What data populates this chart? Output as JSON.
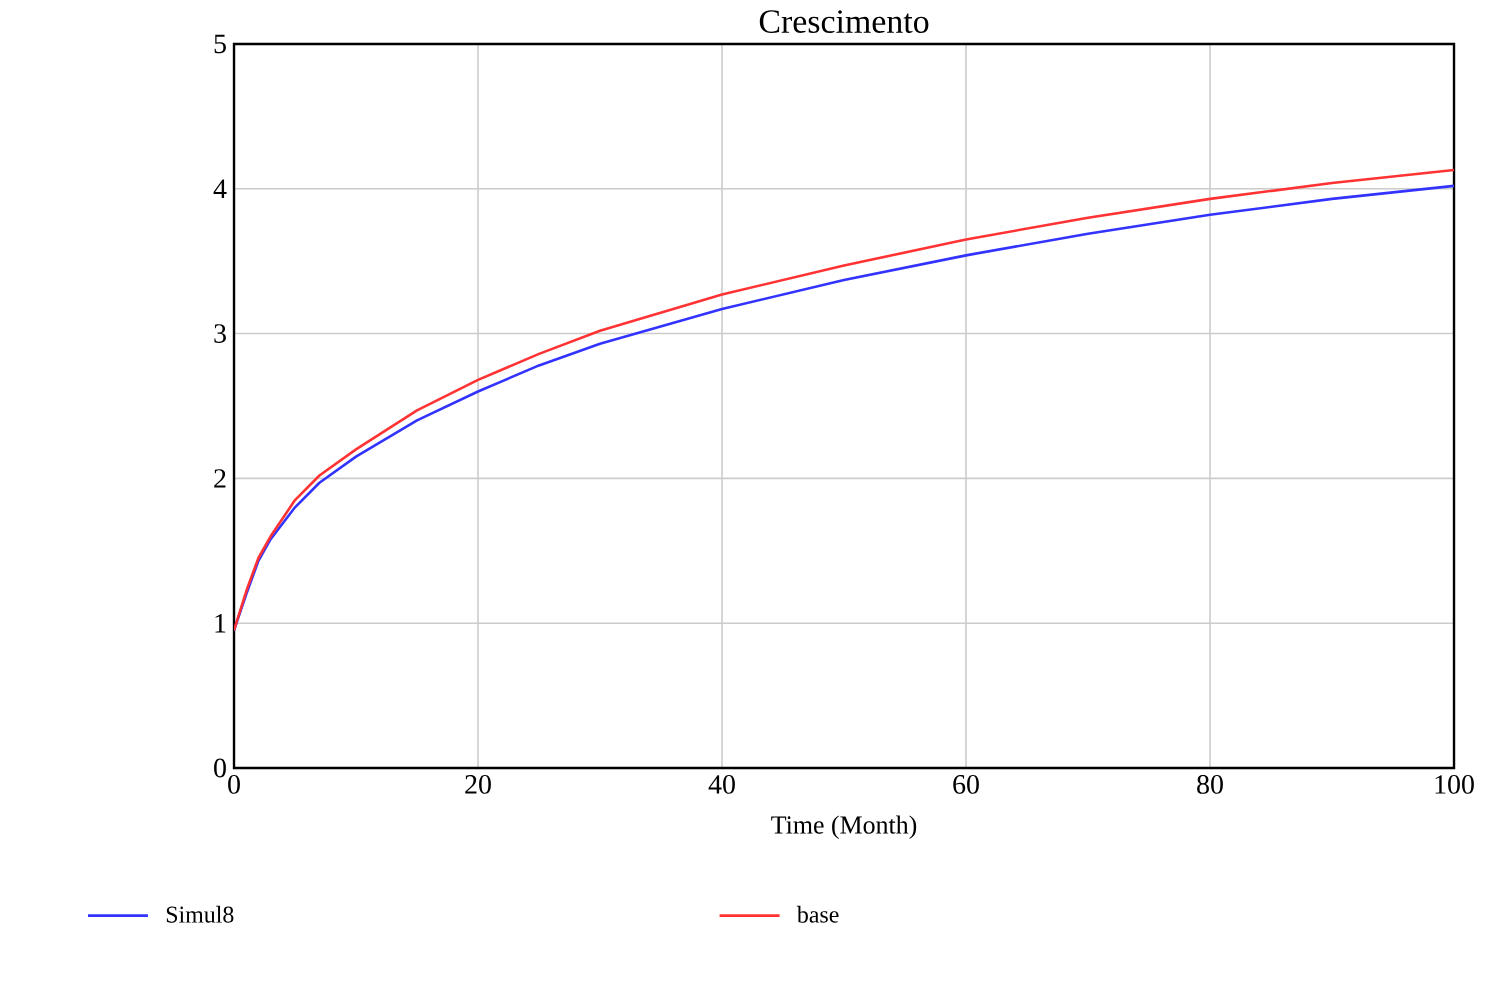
{
  "chart_data": {
    "type": "line",
    "title": "Crescimento",
    "xlabel": "Time (Month)",
    "xlim": [
      0,
      100
    ],
    "xticks": [
      0,
      20,
      40,
      60,
      80,
      100
    ],
    "ylim": [
      0,
      5
    ],
    "yticks": [
      0,
      1,
      2,
      3,
      4,
      5
    ],
    "grid": true,
    "legend": "bottom",
    "line_style": "solid",
    "x": [
      0,
      1,
      2,
      3,
      5,
      7,
      10,
      15,
      20,
      25,
      30,
      40,
      50,
      60,
      70,
      80,
      90,
      100
    ],
    "series": [
      {
        "name": "Simul8",
        "color": "#3333ff",
        "values": [
          0.95,
          1.2,
          1.43,
          1.58,
          1.8,
          1.97,
          2.15,
          2.4,
          2.6,
          2.78,
          2.93,
          3.17,
          3.37,
          3.54,
          3.69,
          3.82,
          3.93,
          4.02
        ]
      },
      {
        "name": "base",
        "color": "#ff3333",
        "values": [
          0.95,
          1.22,
          1.45,
          1.6,
          1.85,
          2.02,
          2.2,
          2.47,
          2.68,
          2.86,
          3.02,
          3.27,
          3.47,
          3.65,
          3.8,
          3.93,
          4.04,
          4.13
        ]
      }
    ]
  }
}
